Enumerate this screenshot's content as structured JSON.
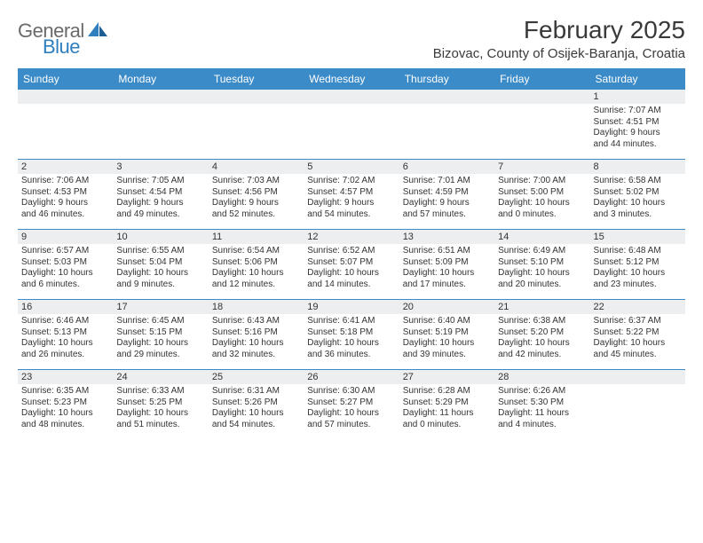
{
  "brand": {
    "part1": "General",
    "part2": "Blue"
  },
  "title": "February 2025",
  "location": "Bizovac, County of Osijek-Baranja, Croatia",
  "colors": {
    "header_bar": "#3b8bc9",
    "daynum_bg": "#eceeef",
    "text": "#333333",
    "logo_gray": "#6a6a6a",
    "logo_blue": "#2f7fbf",
    "background": "#ffffff"
  },
  "weekdays": [
    "Sunday",
    "Monday",
    "Tuesday",
    "Wednesday",
    "Thursday",
    "Friday",
    "Saturday"
  ],
  "weeks": [
    [
      {
        "n": "",
        "lines": []
      },
      {
        "n": "",
        "lines": []
      },
      {
        "n": "",
        "lines": []
      },
      {
        "n": "",
        "lines": []
      },
      {
        "n": "",
        "lines": []
      },
      {
        "n": "",
        "lines": []
      },
      {
        "n": "1",
        "lines": [
          "Sunrise: 7:07 AM",
          "Sunset: 4:51 PM",
          "Daylight: 9 hours",
          "and 44 minutes."
        ]
      }
    ],
    [
      {
        "n": "2",
        "lines": [
          "Sunrise: 7:06 AM",
          "Sunset: 4:53 PM",
          "Daylight: 9 hours",
          "and 46 minutes."
        ]
      },
      {
        "n": "3",
        "lines": [
          "Sunrise: 7:05 AM",
          "Sunset: 4:54 PM",
          "Daylight: 9 hours",
          "and 49 minutes."
        ]
      },
      {
        "n": "4",
        "lines": [
          "Sunrise: 7:03 AM",
          "Sunset: 4:56 PM",
          "Daylight: 9 hours",
          "and 52 minutes."
        ]
      },
      {
        "n": "5",
        "lines": [
          "Sunrise: 7:02 AM",
          "Sunset: 4:57 PM",
          "Daylight: 9 hours",
          "and 54 minutes."
        ]
      },
      {
        "n": "6",
        "lines": [
          "Sunrise: 7:01 AM",
          "Sunset: 4:59 PM",
          "Daylight: 9 hours",
          "and 57 minutes."
        ]
      },
      {
        "n": "7",
        "lines": [
          "Sunrise: 7:00 AM",
          "Sunset: 5:00 PM",
          "Daylight: 10 hours",
          "and 0 minutes."
        ]
      },
      {
        "n": "8",
        "lines": [
          "Sunrise: 6:58 AM",
          "Sunset: 5:02 PM",
          "Daylight: 10 hours",
          "and 3 minutes."
        ]
      }
    ],
    [
      {
        "n": "9",
        "lines": [
          "Sunrise: 6:57 AM",
          "Sunset: 5:03 PM",
          "Daylight: 10 hours",
          "and 6 minutes."
        ]
      },
      {
        "n": "10",
        "lines": [
          "Sunrise: 6:55 AM",
          "Sunset: 5:04 PM",
          "Daylight: 10 hours",
          "and 9 minutes."
        ]
      },
      {
        "n": "11",
        "lines": [
          "Sunrise: 6:54 AM",
          "Sunset: 5:06 PM",
          "Daylight: 10 hours",
          "and 12 minutes."
        ]
      },
      {
        "n": "12",
        "lines": [
          "Sunrise: 6:52 AM",
          "Sunset: 5:07 PM",
          "Daylight: 10 hours",
          "and 14 minutes."
        ]
      },
      {
        "n": "13",
        "lines": [
          "Sunrise: 6:51 AM",
          "Sunset: 5:09 PM",
          "Daylight: 10 hours",
          "and 17 minutes."
        ]
      },
      {
        "n": "14",
        "lines": [
          "Sunrise: 6:49 AM",
          "Sunset: 5:10 PM",
          "Daylight: 10 hours",
          "and 20 minutes."
        ]
      },
      {
        "n": "15",
        "lines": [
          "Sunrise: 6:48 AM",
          "Sunset: 5:12 PM",
          "Daylight: 10 hours",
          "and 23 minutes."
        ]
      }
    ],
    [
      {
        "n": "16",
        "lines": [
          "Sunrise: 6:46 AM",
          "Sunset: 5:13 PM",
          "Daylight: 10 hours",
          "and 26 minutes."
        ]
      },
      {
        "n": "17",
        "lines": [
          "Sunrise: 6:45 AM",
          "Sunset: 5:15 PM",
          "Daylight: 10 hours",
          "and 29 minutes."
        ]
      },
      {
        "n": "18",
        "lines": [
          "Sunrise: 6:43 AM",
          "Sunset: 5:16 PM",
          "Daylight: 10 hours",
          "and 32 minutes."
        ]
      },
      {
        "n": "19",
        "lines": [
          "Sunrise: 6:41 AM",
          "Sunset: 5:18 PM",
          "Daylight: 10 hours",
          "and 36 minutes."
        ]
      },
      {
        "n": "20",
        "lines": [
          "Sunrise: 6:40 AM",
          "Sunset: 5:19 PM",
          "Daylight: 10 hours",
          "and 39 minutes."
        ]
      },
      {
        "n": "21",
        "lines": [
          "Sunrise: 6:38 AM",
          "Sunset: 5:20 PM",
          "Daylight: 10 hours",
          "and 42 minutes."
        ]
      },
      {
        "n": "22",
        "lines": [
          "Sunrise: 6:37 AM",
          "Sunset: 5:22 PM",
          "Daylight: 10 hours",
          "and 45 minutes."
        ]
      }
    ],
    [
      {
        "n": "23",
        "lines": [
          "Sunrise: 6:35 AM",
          "Sunset: 5:23 PM",
          "Daylight: 10 hours",
          "and 48 minutes."
        ]
      },
      {
        "n": "24",
        "lines": [
          "Sunrise: 6:33 AM",
          "Sunset: 5:25 PM",
          "Daylight: 10 hours",
          "and 51 minutes."
        ]
      },
      {
        "n": "25",
        "lines": [
          "Sunrise: 6:31 AM",
          "Sunset: 5:26 PM",
          "Daylight: 10 hours",
          "and 54 minutes."
        ]
      },
      {
        "n": "26",
        "lines": [
          "Sunrise: 6:30 AM",
          "Sunset: 5:27 PM",
          "Daylight: 10 hours",
          "and 57 minutes."
        ]
      },
      {
        "n": "27",
        "lines": [
          "Sunrise: 6:28 AM",
          "Sunset: 5:29 PM",
          "Daylight: 11 hours",
          "and 0 minutes."
        ]
      },
      {
        "n": "28",
        "lines": [
          "Sunrise: 6:26 AM",
          "Sunset: 5:30 PM",
          "Daylight: 11 hours",
          "and 4 minutes."
        ]
      },
      {
        "n": "",
        "lines": []
      }
    ]
  ]
}
